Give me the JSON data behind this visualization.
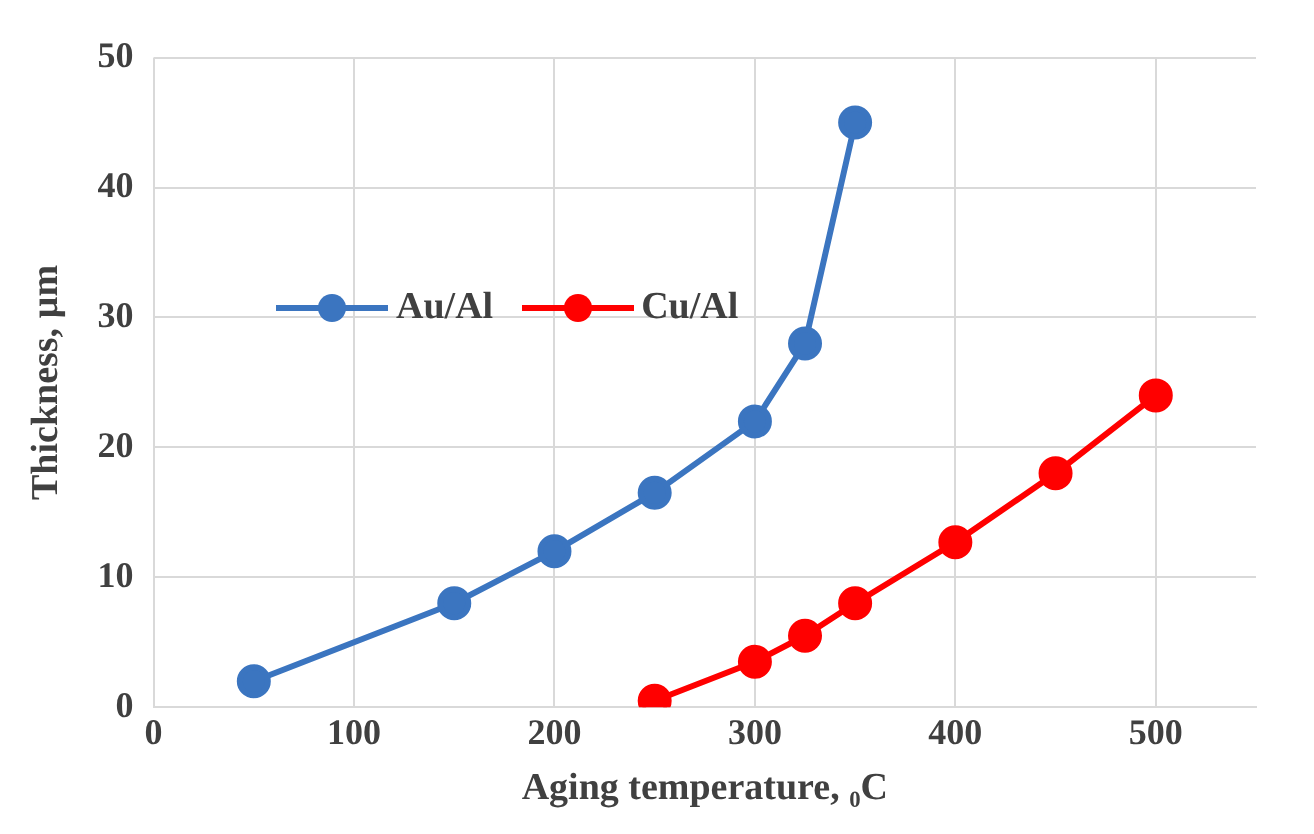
{
  "chart_data": {
    "type": "line",
    "xlabel": "Aging temperature, ₀C",
    "ylabel": "Thickness, µm",
    "xlim": [
      0,
      550
    ],
    "xticks": [
      0,
      100,
      200,
      300,
      400,
      500
    ],
    "ylim": [
      0,
      50
    ],
    "yticks": [
      0,
      10,
      20,
      30,
      40,
      50
    ],
    "grid": true,
    "legend": "left",
    "marker": "circle",
    "line_style": "solid",
    "series": [
      {
        "name": "Au/Al",
        "color": "#3b75c0",
        "x": [
          50,
          150,
          200,
          250,
          300,
          325,
          350
        ],
        "values": [
          2,
          8,
          12,
          16.5,
          22,
          28,
          45
        ]
      },
      {
        "name": "Cu/Al",
        "color": "#ff0000",
        "x": [
          250,
          300,
          325,
          350,
          400,
          450,
          500
        ],
        "values": [
          0.5,
          3.5,
          5.5,
          8,
          12.7,
          18,
          24
        ]
      }
    ]
  }
}
